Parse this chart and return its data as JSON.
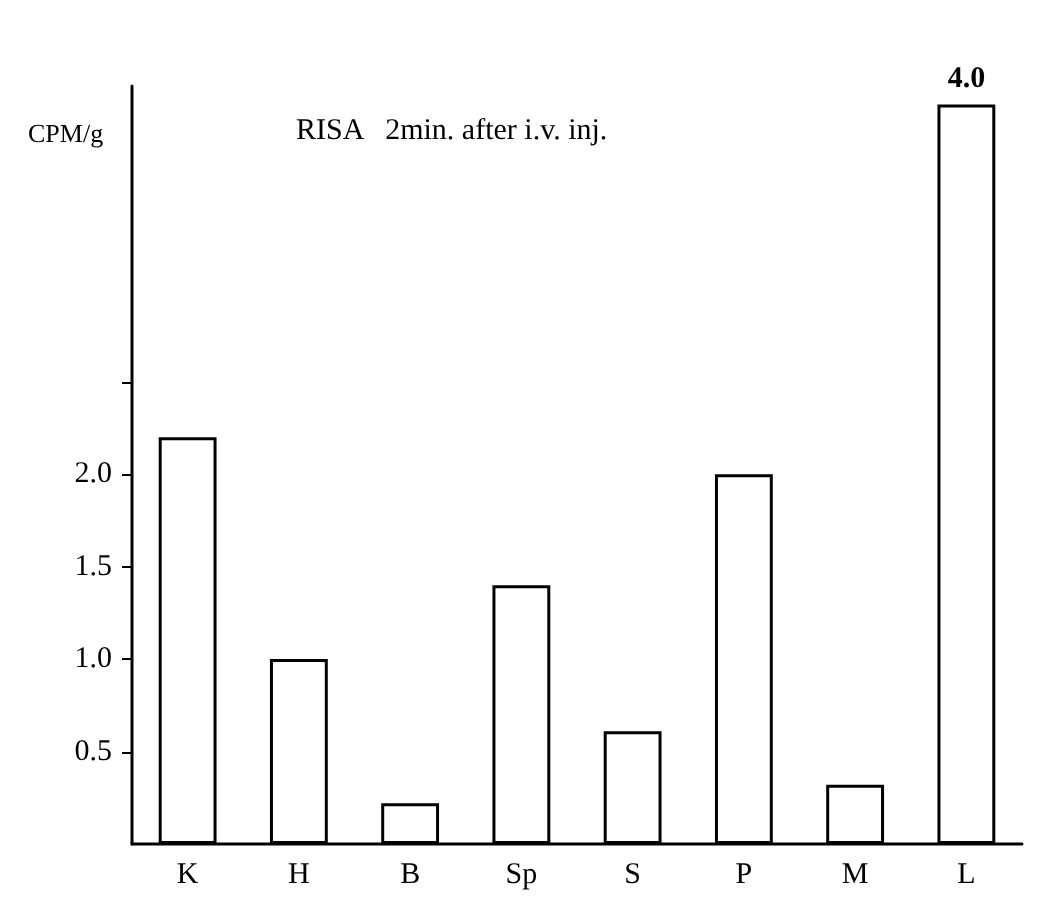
{
  "chart_data": {
    "type": "bar",
    "title": "RISA   2min. after i.v. inj.",
    "ylabel": "CPM/g",
    "categories": [
      "K",
      "H",
      "B",
      "Sp",
      "S",
      "P",
      "M",
      "L"
    ],
    "values": [
      2.2,
      1.0,
      0.22,
      1.4,
      0.61,
      2.0,
      0.32,
      4.0
    ],
    "value_labels": [
      null,
      null,
      null,
      null,
      null,
      null,
      null,
      "4.0"
    ],
    "color": "#ffffff",
    "ylim": [
      0,
      4.1
    ],
    "yticks": [
      {
        "value": 0.5,
        "label": "0.5"
      },
      {
        "value": 1.0,
        "label": "1.0"
      },
      {
        "value": 1.5,
        "label": "1.5"
      },
      {
        "value": 2.0,
        "label": "2.0"
      },
      {
        "value": 2.5,
        "label": null
      }
    ],
    "grid": false
  }
}
